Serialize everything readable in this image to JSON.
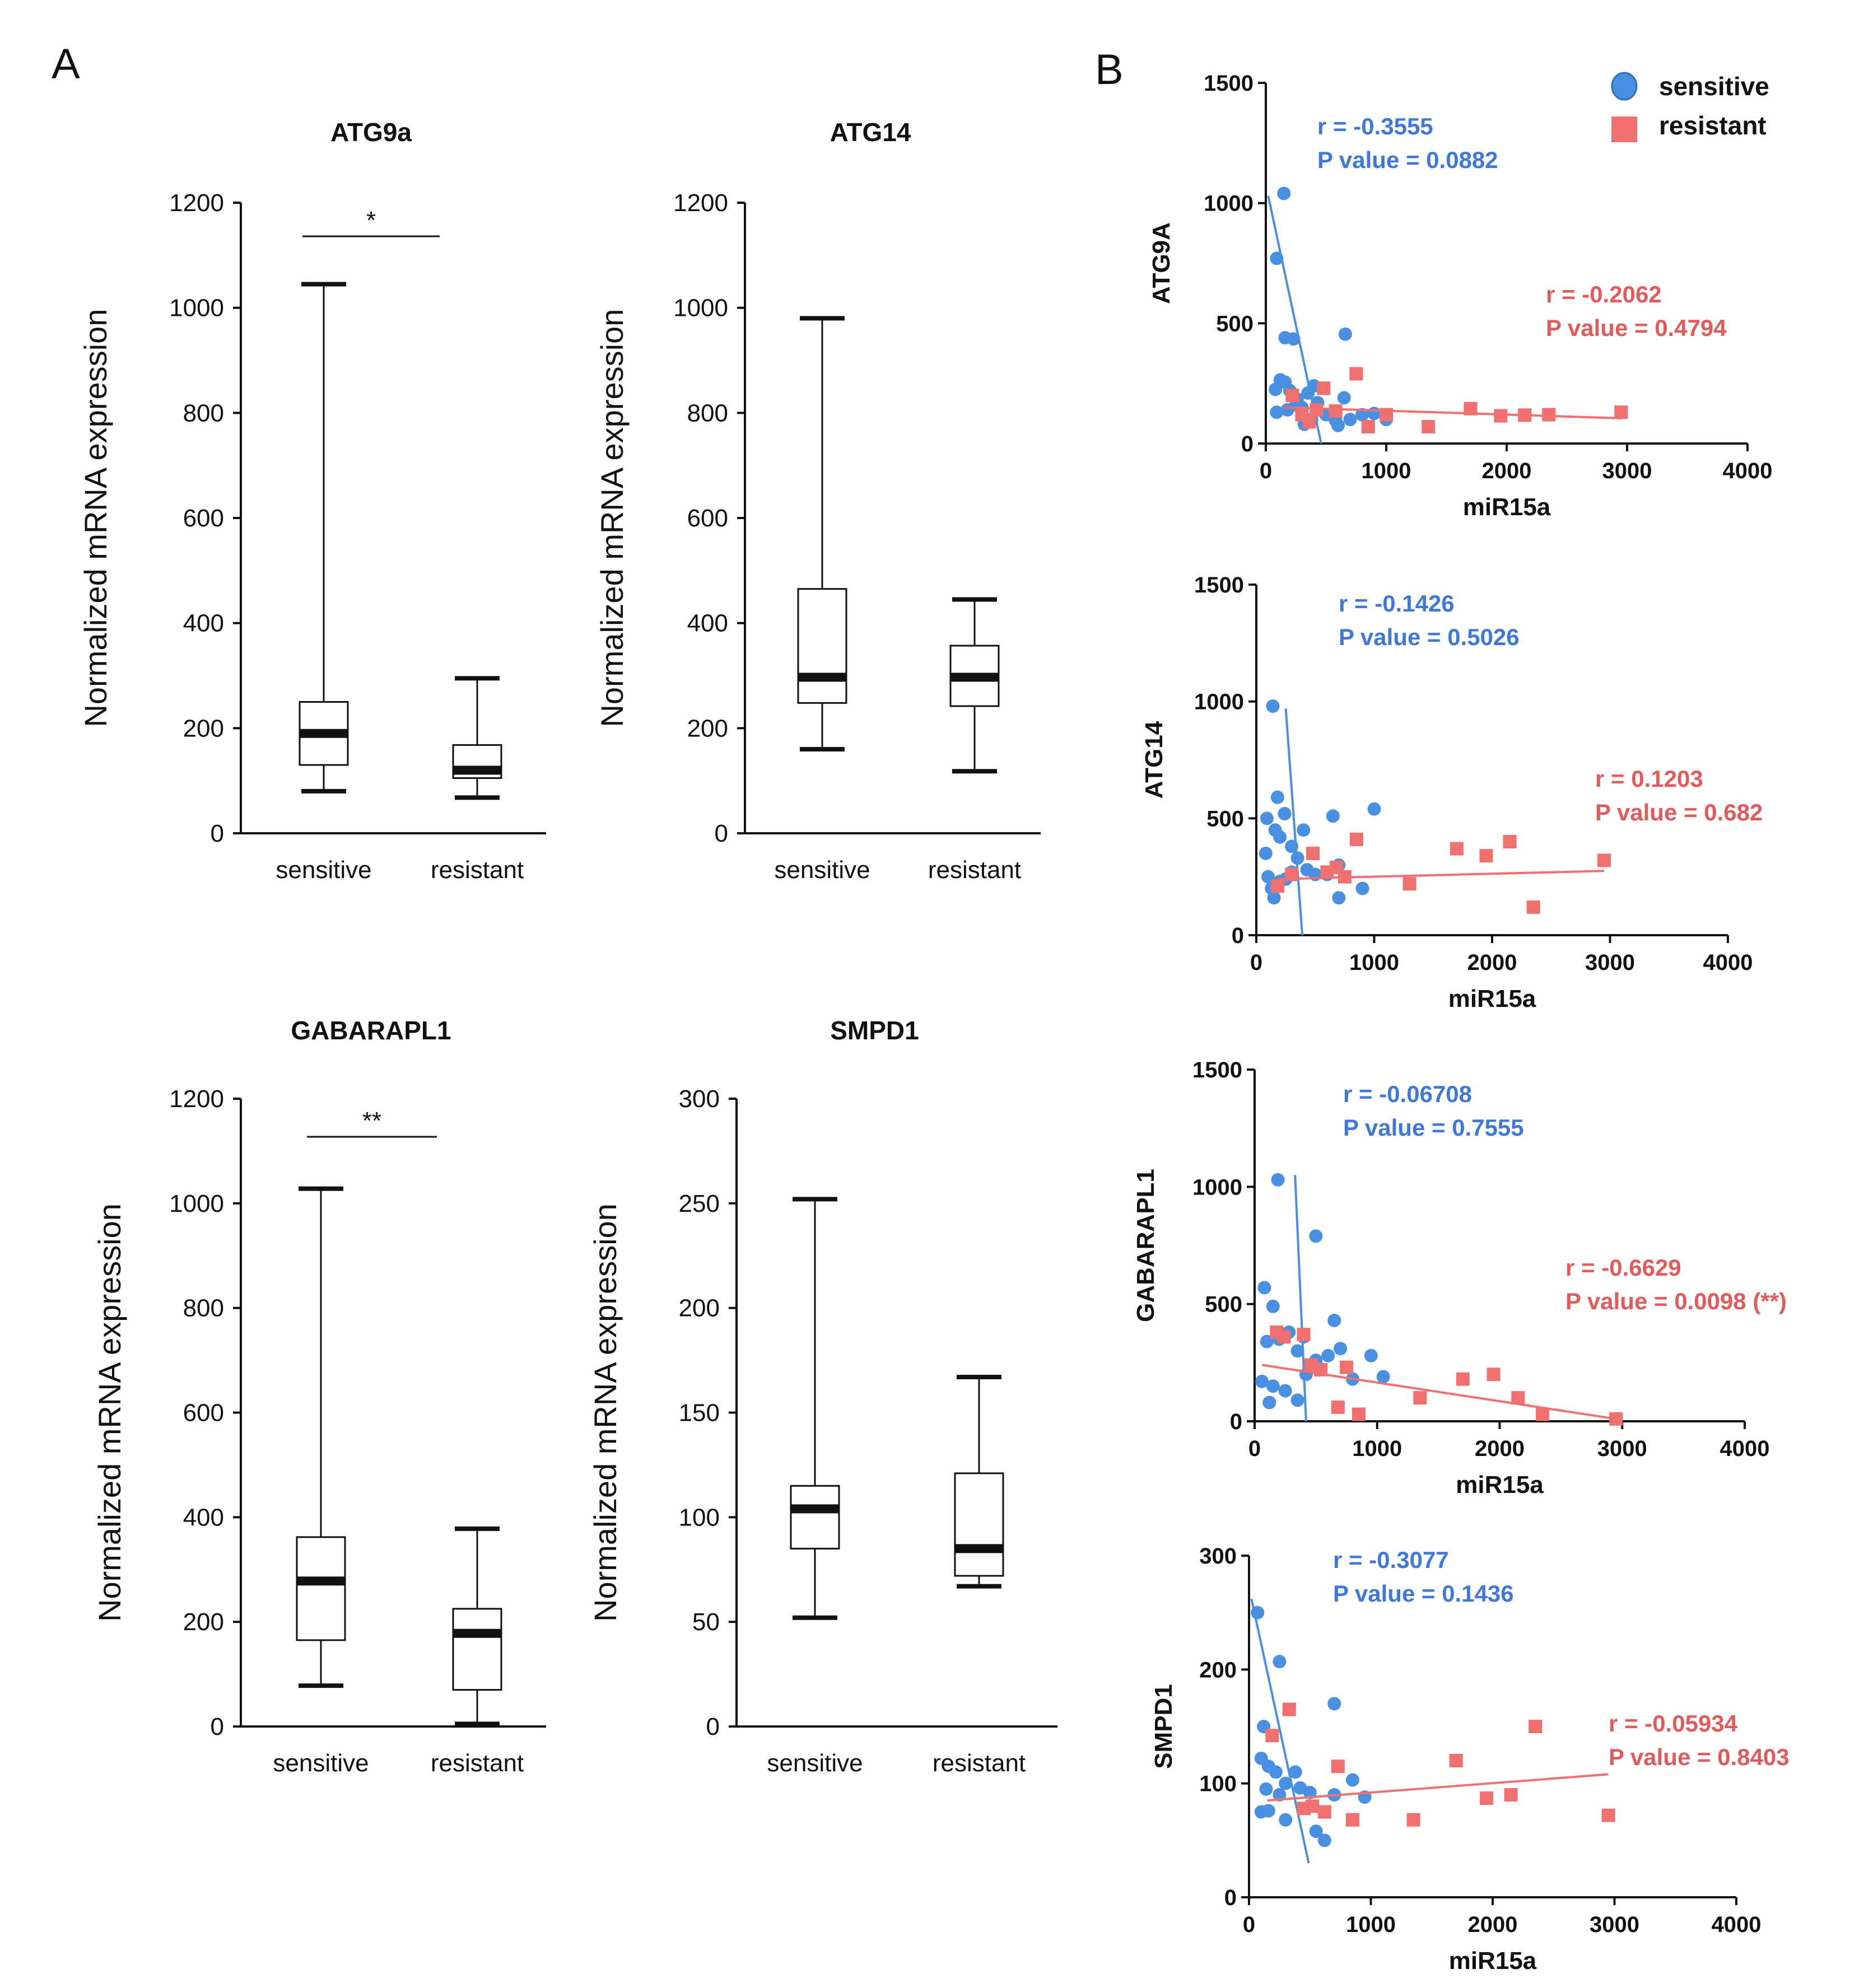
{
  "panel_labels": {
    "a": "A",
    "b": "B"
  },
  "colors": {
    "sensitive": "#4a90e2",
    "resistant": "#f07070",
    "sensitive_text": "#3f78d8",
    "resistant_text": "#e35a5a",
    "axis": "#111111"
  },
  "chart_data": [
    {
      "id": "a1",
      "type": "box",
      "title": "ATG9a",
      "ylabel": "Normalized mRNA expression",
      "ylim": [
        0,
        1200
      ],
      "yticks": [
        0,
        200,
        400,
        600,
        800,
        1000,
        1200
      ],
      "categories": [
        "sensitive",
        "resistant"
      ],
      "boxes": [
        {
          "group": "sensitive",
          "min": 80,
          "q1": 130,
          "median": 190,
          "q3": 250,
          "max": 1045
        },
        {
          "group": "resistant",
          "min": 68,
          "q1": 105,
          "median": 120,
          "q3": 168,
          "max": 295
        }
      ],
      "significance": "*"
    },
    {
      "id": "a2",
      "type": "box",
      "title": "ATG14",
      "ylabel": "Normalized mRNA expression",
      "ylim": [
        0,
        1200
      ],
      "yticks": [
        0,
        200,
        400,
        600,
        800,
        1000,
        1200
      ],
      "categories": [
        "sensitive",
        "resistant"
      ],
      "boxes": [
        {
          "group": "sensitive",
          "min": 160,
          "q1": 248,
          "median": 297,
          "q3": 465,
          "max": 980
        },
        {
          "group": "resistant",
          "min": 118,
          "q1": 242,
          "median": 297,
          "q3": 357,
          "max": 445
        }
      ],
      "significance": ""
    },
    {
      "id": "a3",
      "type": "box",
      "title": "GABARAPL1",
      "ylabel": "Normalized mRNA expression",
      "ylim": [
        0,
        1200
      ],
      "yticks": [
        0,
        200,
        400,
        600,
        800,
        1000,
        1200
      ],
      "categories": [
        "sensitive",
        "resistant"
      ],
      "boxes": [
        {
          "group": "sensitive",
          "min": 78,
          "q1": 165,
          "median": 278,
          "q3": 362,
          "max": 1028
        },
        {
          "group": "resistant",
          "min": 5,
          "q1": 70,
          "median": 178,
          "q3": 225,
          "max": 378
        }
      ],
      "significance": "**"
    },
    {
      "id": "a4",
      "type": "box",
      "title": "SMPD1",
      "ylabel": "Normalized mRNA expression",
      "ylim": [
        0,
        300
      ],
      "yticks": [
        0,
        50,
        100,
        150,
        200,
        250,
        300
      ],
      "categories": [
        "sensitive",
        "resistant"
      ],
      "boxes": [
        {
          "group": "sensitive",
          "min": 52,
          "q1": 85,
          "median": 104,
          "q3": 115,
          "max": 252
        },
        {
          "group": "resistant",
          "min": 67,
          "q1": 72,
          "median": 85,
          "q3": 121,
          "max": 167
        }
      ],
      "significance": ""
    },
    {
      "id": "b1",
      "type": "scatter",
      "ylabel": "ATG9A",
      "xlabel": "miR15a",
      "xlim": [
        0,
        4000
      ],
      "ylim": [
        0,
        1500
      ],
      "xticks": [
        0,
        1000,
        2000,
        3000,
        4000
      ],
      "yticks": [
        0,
        500,
        1000,
        1500
      ],
      "series": [
        {
          "name": "sensitive",
          "points": [
            [
              150,
              1040
            ],
            [
              90,
              770
            ],
            [
              160,
              440
            ],
            [
              230,
              435
            ],
            [
              660,
              455
            ],
            [
              80,
              225
            ],
            [
              120,
              265
            ],
            [
              160,
              255
            ],
            [
              200,
              220
            ],
            [
              260,
              185
            ],
            [
              300,
              150
            ],
            [
              350,
              210
            ],
            [
              400,
              240
            ],
            [
              430,
              170
            ],
            [
              180,
              140
            ],
            [
              90,
              130
            ],
            [
              320,
              80
            ],
            [
              380,
              100
            ],
            [
              500,
              120
            ],
            [
              580,
              95
            ],
            [
              650,
              190
            ],
            [
              700,
              100
            ],
            [
              800,
              120
            ],
            [
              900,
              125
            ],
            [
              1000,
              100
            ],
            [
              600,
              75
            ],
            [
              250,
              160
            ]
          ],
          "fit": [
            [
              20,
              1030
            ],
            [
              460,
              0
            ]
          ]
        },
        {
          "name": "resistant",
          "points": [
            [
              220,
              200
            ],
            [
              300,
              120
            ],
            [
              360,
              90
            ],
            [
              420,
              140
            ],
            [
              480,
              230
            ],
            [
              580,
              135
            ],
            [
              750,
              290
            ],
            [
              850,
              70
            ],
            [
              1000,
              120
            ],
            [
              1350,
              70
            ],
            [
              1700,
              145
            ],
            [
              1950,
              115
            ],
            [
              2150,
              118
            ],
            [
              2350,
              120
            ],
            [
              2950,
              130
            ]
          ],
          "fit": [
            [
              150,
              150
            ],
            [
              2950,
              105
            ]
          ]
        }
      ],
      "annotations": [
        {
          "series": "sensitive",
          "lines": [
            "r = -0.3555",
            "P value = 0.0882"
          ]
        },
        {
          "series": "resistant",
          "lines": [
            "r = -0.2062",
            "P value = 0.4794"
          ]
        }
      ],
      "legend": [
        "sensitive",
        "resistant"
      ]
    },
    {
      "id": "b2",
      "type": "scatter",
      "ylabel": "ATG14",
      "xlabel": "miR15a",
      "xlim": [
        0,
        4000
      ],
      "ylim": [
        0,
        1500
      ],
      "xticks": [
        0,
        1000,
        2000,
        3000,
        4000
      ],
      "yticks": [
        0,
        500,
        1000,
        1500
      ],
      "series": [
        {
          "name": "sensitive",
          "points": [
            [
              140,
              980
            ],
            [
              180,
              590
            ],
            [
              240,
              520
            ],
            [
              90,
              500
            ],
            [
              160,
              450
            ],
            [
              200,
              420
            ],
            [
              80,
              350
            ],
            [
              300,
              380
            ],
            [
              400,
              450
            ],
            [
              650,
              510
            ],
            [
              1000,
              540
            ],
            [
              350,
              330
            ],
            [
              430,
              280
            ],
            [
              500,
              260
            ],
            [
              600,
              260
            ],
            [
              700,
              300
            ],
            [
              900,
              200
            ],
            [
              100,
              250
            ],
            [
              130,
              200
            ],
            [
              150,
              160
            ],
            [
              200,
              230
            ],
            [
              250,
              240
            ],
            [
              300,
              270
            ],
            [
              700,
              160
            ]
          ],
          "fit": [
            [
              250,
              970
            ],
            [
              390,
              0
            ]
          ]
        },
        {
          "name": "resistant",
          "points": [
            [
              180,
              210
            ],
            [
              300,
              260
            ],
            [
              480,
              350
            ],
            [
              600,
              270
            ],
            [
              680,
              290
            ],
            [
              750,
              250
            ],
            [
              850,
              410
            ],
            [
              1300,
              220
            ],
            [
              1700,
              370
            ],
            [
              1950,
              340
            ],
            [
              2150,
              400
            ],
            [
              2350,
              120
            ],
            [
              2950,
              320
            ]
          ],
          "fit": [
            [
              180,
              240
            ],
            [
              2950,
              275
            ]
          ]
        }
      ],
      "annotations": [
        {
          "series": "sensitive",
          "lines": [
            "r = -0.1426",
            "P value = 0.5026"
          ]
        },
        {
          "series": "resistant",
          "lines": [
            "r = 0.1203",
            "P value = 0.682"
          ]
        }
      ]
    },
    {
      "id": "b3",
      "type": "scatter",
      "ylabel": "GABARAPL1",
      "xlabel": "miR15a",
      "xlim": [
        0,
        4000
      ],
      "ylim": [
        0,
        1500
      ],
      "xticks": [
        0,
        1000,
        2000,
        3000,
        4000
      ],
      "yticks": [
        0,
        500,
        1000,
        1500
      ],
      "series": [
        {
          "name": "sensitive",
          "points": [
            [
              190,
              1030
            ],
            [
              500,
              790
            ],
            [
              80,
              570
            ],
            [
              150,
              490
            ],
            [
              400,
              360
            ],
            [
              650,
              430
            ],
            [
              950,
              280
            ],
            [
              1050,
              190
            ],
            [
              100,
              340
            ],
            [
              200,
              350
            ],
            [
              280,
              380
            ],
            [
              350,
              300
            ],
            [
              420,
              200
            ],
            [
              500,
              260
            ],
            [
              600,
              280
            ],
            [
              700,
              310
            ],
            [
              800,
              180
            ],
            [
              60,
              170
            ],
            [
              150,
              150
            ],
            [
              250,
              130
            ],
            [
              350,
              90
            ],
            [
              120,
              80
            ]
          ],
          "fit": [
            [
              330,
              1050
            ],
            [
              420,
              0
            ]
          ]
        },
        {
          "name": "resistant",
          "points": [
            [
              180,
              380
            ],
            [
              240,
              360
            ],
            [
              400,
              370
            ],
            [
              460,
              240
            ],
            [
              540,
              220
            ],
            [
              680,
              60
            ],
            [
              750,
              230
            ],
            [
              850,
              30
            ],
            [
              1350,
              100
            ],
            [
              1700,
              180
            ],
            [
              1950,
              200
            ],
            [
              2150,
              100
            ],
            [
              2350,
              30
            ],
            [
              2950,
              10
            ]
          ],
          "fit": [
            [
              60,
              240
            ],
            [
              2950,
              10
            ]
          ]
        }
      ],
      "annotations": [
        {
          "series": "sensitive",
          "lines": [
            "r = -0.06708",
            "P value = 0.7555"
          ]
        },
        {
          "series": "resistant",
          "lines": [
            "r = -0.6629",
            "P value = 0.0098 (**)"
          ]
        }
      ]
    },
    {
      "id": "b4",
      "type": "scatter",
      "ylabel": "SMPD1",
      "xlabel": "miR15a",
      "xlim": [
        0,
        4000
      ],
      "ylim": [
        0,
        300
      ],
      "xticks": [
        0,
        1000,
        2000,
        3000,
        4000
      ],
      "yticks": [
        0,
        100,
        200,
        300
      ],
      "series": [
        {
          "name": "sensitive",
          "points": [
            [
              70,
              250
            ],
            [
              250,
              207
            ],
            [
              700,
              170
            ],
            [
              120,
              150
            ],
            [
              100,
              122
            ],
            [
              160,
              115
            ],
            [
              220,
              110
            ],
            [
              300,
              100
            ],
            [
              380,
              110
            ],
            [
              420,
              96
            ],
            [
              500,
              92
            ],
            [
              700,
              90
            ],
            [
              850,
              103
            ],
            [
              950,
              88
            ],
            [
              140,
              95
            ],
            [
              100,
              75
            ],
            [
              160,
              76
            ],
            [
              300,
              68
            ],
            [
              550,
              58
            ],
            [
              620,
              50
            ],
            [
              250,
              90
            ]
          ],
          "fit": [
            [
              20,
              262
            ],
            [
              490,
              30
            ]
          ]
        },
        {
          "name": "resistant",
          "points": [
            [
              190,
              142
            ],
            [
              330,
              165
            ],
            [
              450,
              78
            ],
            [
              520,
              80
            ],
            [
              620,
              75
            ],
            [
              730,
              115
            ],
            [
              850,
              68
            ],
            [
              1350,
              68
            ],
            [
              1700,
              120
            ],
            [
              1950,
              87
            ],
            [
              2150,
              90
            ],
            [
              2350,
              150
            ],
            [
              2950,
              72
            ]
          ],
          "fit": [
            [
              150,
              85
            ],
            [
              2950,
              108
            ]
          ]
        }
      ],
      "annotations": [
        {
          "series": "sensitive",
          "lines": [
            "r = -0.3077",
            "P value = 0.1436"
          ]
        },
        {
          "series": "resistant",
          "lines": [
            "r = -0.05934",
            "P value = 0.8403"
          ]
        }
      ]
    }
  ]
}
